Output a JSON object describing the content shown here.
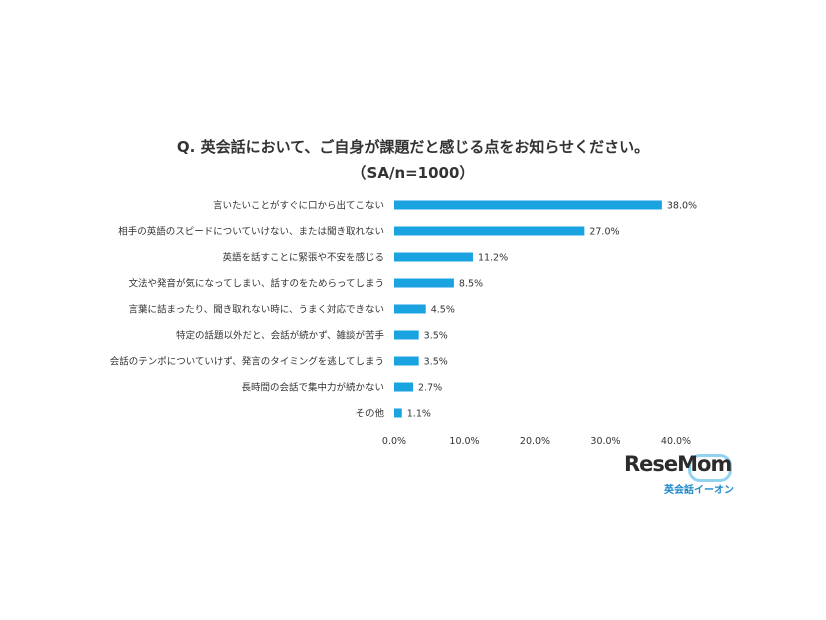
{
  "chart_data": {
    "type": "bar",
    "orientation": "horizontal",
    "title": "Q. 英会話において、ご自身が課題だと感じる点をお知らせください。",
    "subtitle": "（SA/n=1000）",
    "categories": [
      "言いたいことがすぐに口から出てこない",
      "相手の英語のスピードについていけない、または聞き取れない",
      "英語を話すことに緊張や不安を感じる",
      "文法や発音が気になってしまい、話すのをためらってしまう",
      "言葉に詰まったり、聞き取れない時に、うまく対応できない",
      "特定の話題以外だと、会話が続かず、雑談が苦手",
      "会話のテンポについていけず、発言のタイミングを逃してしまう",
      "長時間の会話で集中力が続かない",
      "その他"
    ],
    "values": [
      38.0,
      27.0,
      11.2,
      8.5,
      4.5,
      3.5,
      3.5,
      2.7,
      1.1
    ],
    "data_labels": [
      "38.0%",
      "27.0%",
      "11.2%",
      "8.5%",
      "4.5%",
      "3.5%",
      "3.5%",
      "2.7%",
      "1.1%"
    ],
    "x_ticks": [
      "0.0%",
      "10.0%",
      "20.0%",
      "30.0%",
      "40.0%"
    ],
    "xlim": [
      0,
      40
    ],
    "grid": false,
    "bar_color": "#1aa3e0"
  },
  "branding": {
    "logo_text": "ReseMom",
    "sub_text": "英会話イーオン"
  }
}
